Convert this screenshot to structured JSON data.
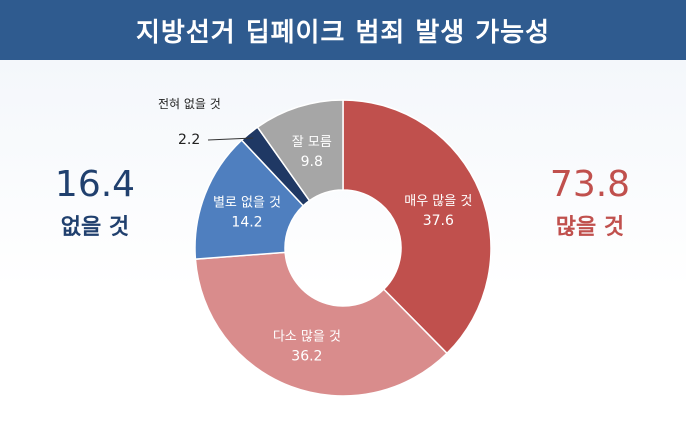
{
  "header": {
    "title": "지방선거 딥페이크 범죄 발생 가능성"
  },
  "summary": {
    "left": {
      "value": "16.4",
      "label": "없을 것",
      "color": "#20406e"
    },
    "right": {
      "value": "73.8",
      "label": "많을 것",
      "color": "#c0504d"
    }
  },
  "chart_data": {
    "type": "pie",
    "title": "지방선거 딥페이크 범죄 발생 가능성",
    "slices": [
      {
        "label": "매우 많을 것",
        "value": 37.6,
        "color": "#c0504d"
      },
      {
        "label": "다소 많을 것",
        "value": 36.2,
        "color": "#d98c8c"
      },
      {
        "label": "별로 없을 것",
        "value": 14.2,
        "color": "#4f7fbf"
      },
      {
        "label": "전혀 없을 것",
        "value": 2.2,
        "color": "#1f3864"
      },
      {
        "label": "잘 모름",
        "value": 9.8,
        "color": "#a6a6a6"
      }
    ]
  }
}
